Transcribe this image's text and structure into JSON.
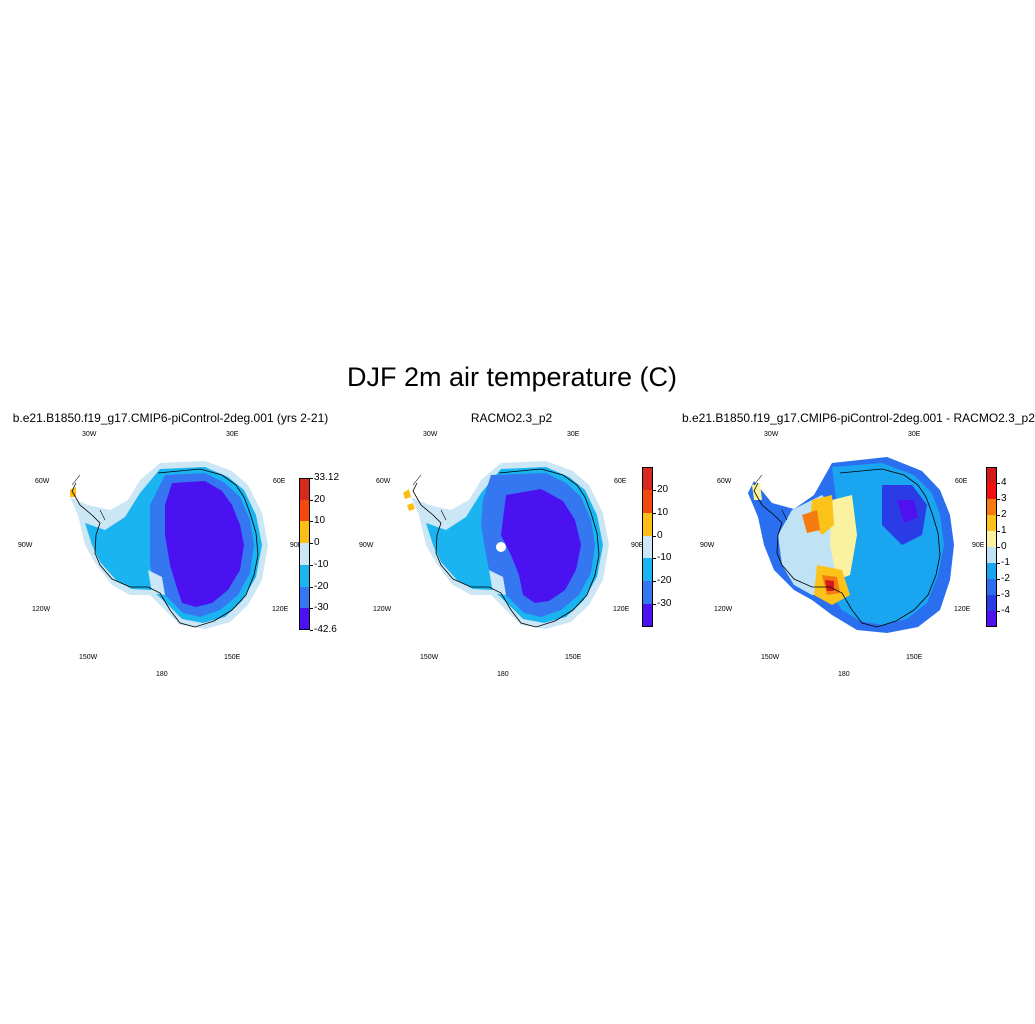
{
  "figure": {
    "title": "DJF 2m air temperature (C)"
  },
  "lon_labels": [
    "30W",
    "30E",
    "60W",
    "60E",
    "90W",
    "90E",
    "120W",
    "120E",
    "150W",
    "150E",
    "180"
  ],
  "panels": [
    {
      "title": "b.e21.B1850.f19_g17.CMIP6-piControl-2deg.001 (yrs 2-21)",
      "colorbar": {
        "labels": [
          "33.12",
          "20",
          "10",
          "0",
          "-10",
          "-20",
          "-30",
          "-42.6"
        ],
        "colors": [
          "#d62a1e",
          "#f5480f",
          "#fbbd16",
          "#cbe6f5",
          "#1ab5f0",
          "#3477f0",
          "#4a12f0"
        ]
      }
    },
    {
      "title": "RACMO2.3_p2",
      "colorbar": {
        "labels": [
          "20",
          "10",
          "0",
          "-10",
          "-20",
          "-30"
        ],
        "colors": [
          "#d62a1e",
          "#f5480f",
          "#fbbd16",
          "#cbe6f5",
          "#1ab5f0",
          "#3477f0",
          "#4a12f0"
        ]
      }
    },
    {
      "title": "b.e21.B1850.f19_g17.CMIP6-piControl-2deg.001 - RACMO2.3_p2",
      "colorbar": {
        "labels": [
          "4",
          "3",
          "2",
          "1",
          "0",
          "-1",
          "-2",
          "-3",
          "-4"
        ],
        "colors": [
          "#d21a1a",
          "#f51010",
          "#f57a0f",
          "#fbc21a",
          "#fbf2a0",
          "#bfe3f5",
          "#1aa5f0",
          "#2a6ff0",
          "#2a3ce6",
          "#5010f0"
        ]
      }
    }
  ]
}
